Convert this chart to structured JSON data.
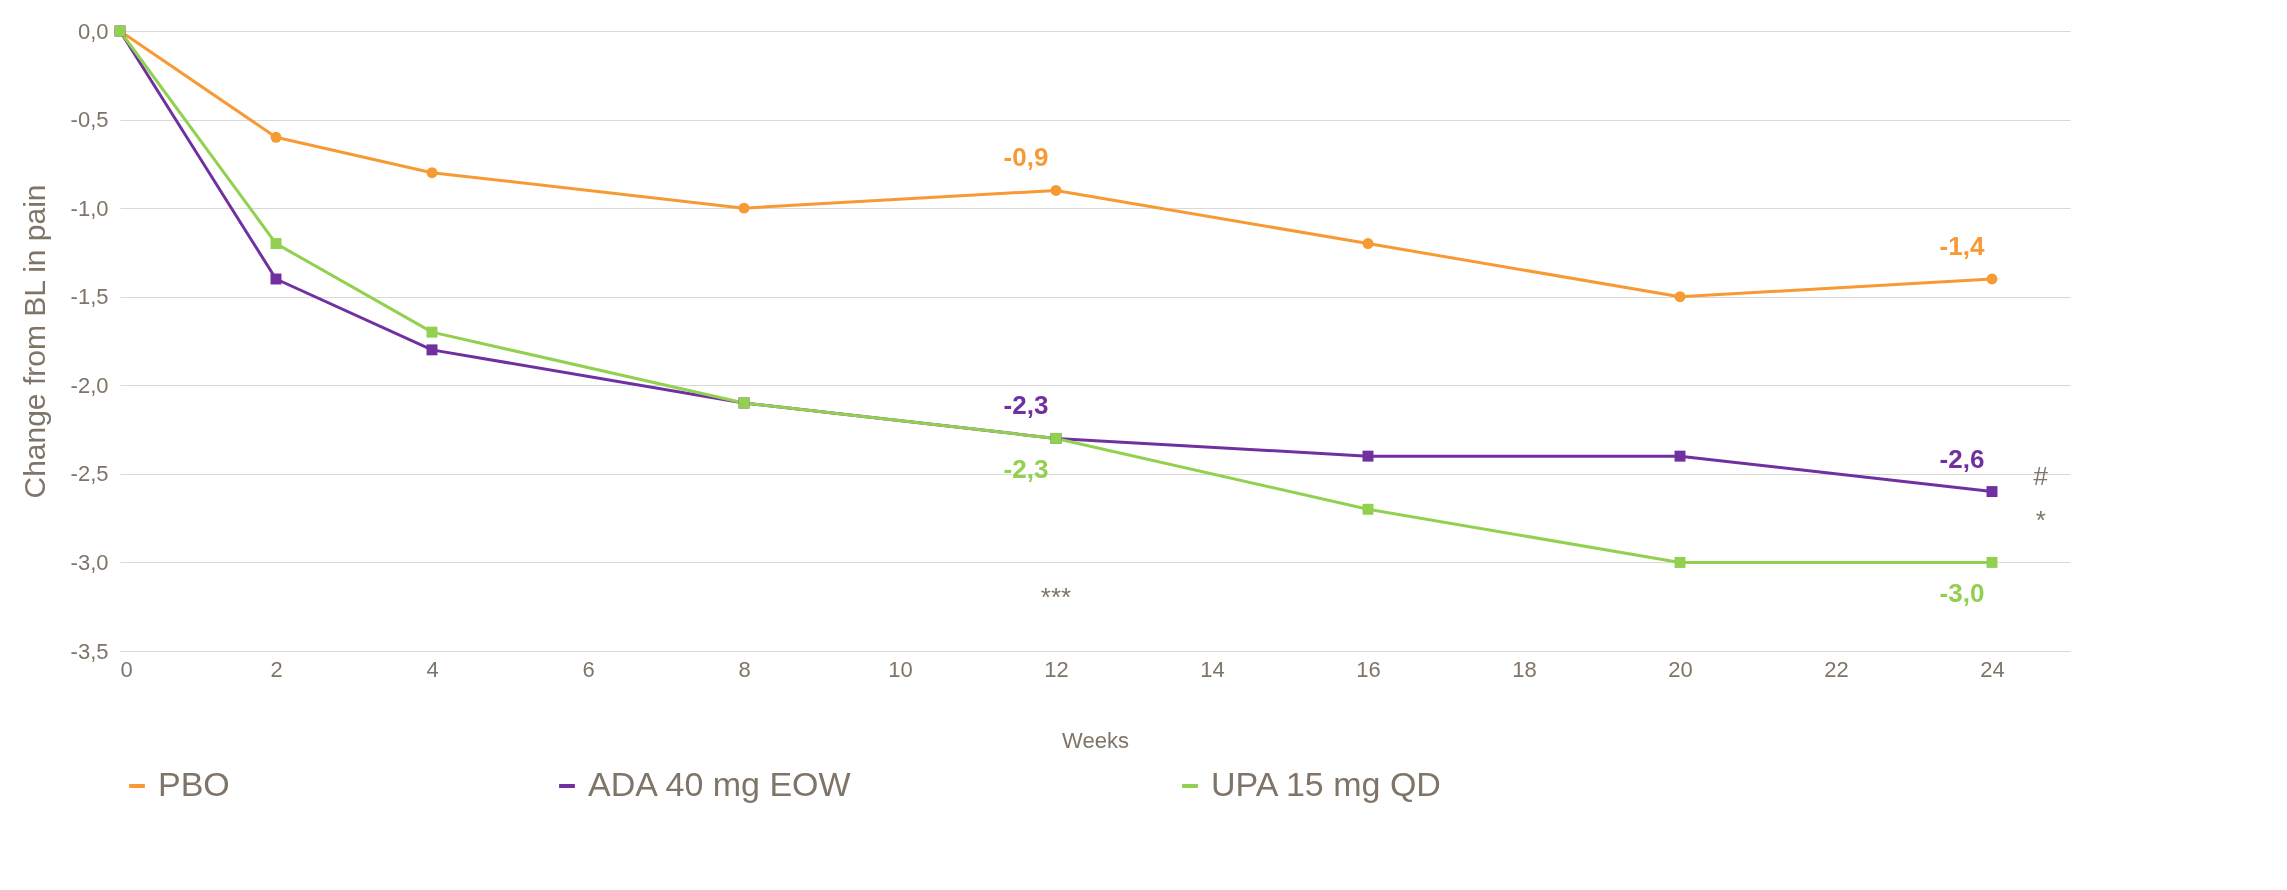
{
  "chart_data": {
    "type": "line",
    "xlabel": "Weeks",
    "ylabel": "Change from BL in pain",
    "x": [
      0,
      2,
      4,
      8,
      12,
      16,
      20,
      24
    ],
    "xlim": [
      0,
      25
    ],
    "xticks": [
      0,
      2,
      4,
      6,
      8,
      10,
      12,
      14,
      16,
      18,
      20,
      22,
      24
    ],
    "ylim": [
      -3.5,
      0
    ],
    "yticks": [
      {
        "value": 0,
        "label": "0,0"
      },
      {
        "value": -0.5,
        "label": "-0,5"
      },
      {
        "value": -1,
        "label": "-1,0"
      },
      {
        "value": -1.5,
        "label": "-1,5"
      },
      {
        "value": -2,
        "label": "-2,0"
      },
      {
        "value": -2.5,
        "label": "-2,5"
      },
      {
        "value": -3,
        "label": "-3,0"
      },
      {
        "value": -3.5,
        "label": "-3,5"
      }
    ],
    "grid": "y",
    "legend": "bottom",
    "line_style": "solid",
    "series": [
      {
        "name": "PBO",
        "color": "#f79a34",
        "marker": "circle",
        "values": [
          0,
          -0.6,
          -0.8,
          -1.0,
          -0.9,
          -1.2,
          -1.5,
          -1.4
        ],
        "value_labels": [
          null,
          null,
          null,
          null,
          "-0,9",
          null,
          null,
          "-1,4"
        ]
      },
      {
        "name": "ADA 40 mg EOW",
        "color": "#7030a0",
        "marker": "square",
        "values": [
          0,
          -1.4,
          -1.8,
          -2.1,
          -2.3,
          -2.4,
          -2.4,
          -2.6
        ],
        "value_labels": [
          null,
          null,
          null,
          null,
          "-2,3",
          null,
          null,
          "-2,6"
        ]
      },
      {
        "name": "UPA 15 mg QD",
        "color": "#92d050",
        "marker": "square",
        "values": [
          0,
          -1.2,
          -1.7,
          -2.1,
          -2.3,
          -2.7,
          -3.0,
          -3.0
        ],
        "value_labels": [
          null,
          null,
          null,
          null,
          "-2,3",
          null,
          null,
          "-3,0"
        ]
      }
    ],
    "annotations": [
      "***",
      "#",
      "*"
    ]
  }
}
